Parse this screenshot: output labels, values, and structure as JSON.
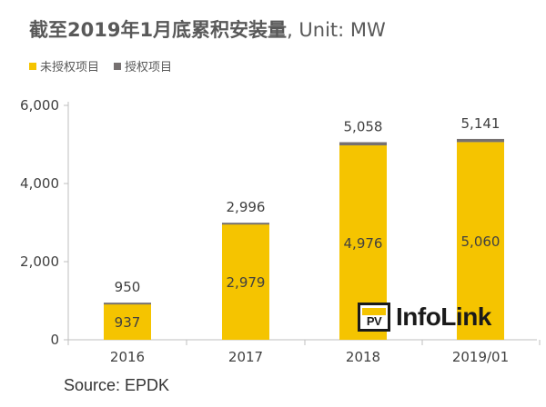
{
  "chart_data": {
    "type": "bar",
    "stacked": true,
    "title": "截至2019年1月底累积安装量",
    "title_unit": ", Unit: MW",
    "categories": [
      "2016",
      "2017",
      "2018",
      "2019/01"
    ],
    "series": [
      {
        "name": "未授权项目",
        "color": "#f5c400",
        "values": [
          937,
          2979,
          4976,
          5060
        ]
      },
      {
        "name": "授权项目",
        "color": "#767171",
        "values": [
          13,
          17,
          82,
          81
        ]
      }
    ],
    "totals": [
      950,
      2996,
      5058,
      5141
    ],
    "ylim": [
      0,
      6000
    ],
    "yticks": [
      "0",
      "2,000",
      "4,000",
      "6,000"
    ],
    "ytick_values": [
      0,
      2000,
      4000,
      6000
    ],
    "segment_labels": [
      "937",
      "2,979",
      "4,976",
      "5,060"
    ],
    "total_labels": [
      "950",
      "2,996",
      "5,058",
      "5,141"
    ],
    "grid": false,
    "legend_position": "top-left"
  },
  "source": "Source: EPDK",
  "logo": {
    "box_text": "PV",
    "word": "InfoLink"
  }
}
